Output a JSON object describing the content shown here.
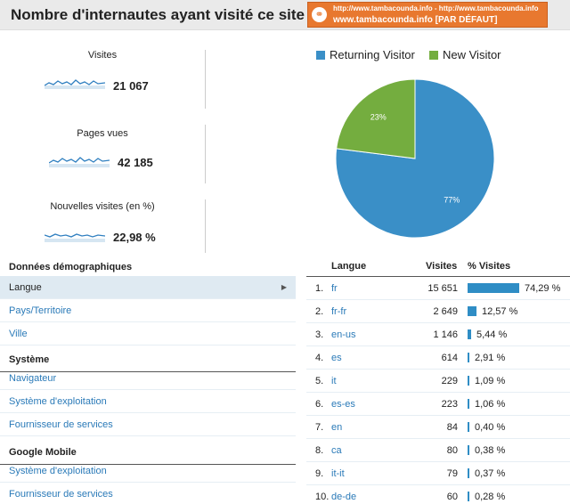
{
  "header": {
    "title": "Nombre d'internautes ayant visité ce site :",
    "profile_line1": "http://www.tambacounda.info - http://www.tambacounda.info",
    "profile_line2": "www.tambacounda.info [PAR DÉFAUT]"
  },
  "metrics": [
    {
      "label": "Visites",
      "value": "21 067"
    },
    {
      "label": "Pages vues",
      "value": "42 185"
    },
    {
      "label": "Nouvelles visites (en %)",
      "value": "22,98 %"
    }
  ],
  "pie": {
    "legend": [
      {
        "name": "Returning Visitor",
        "color": "#3a8fc7"
      },
      {
        "name": "New Visitor",
        "color": "#74ad3f"
      }
    ],
    "slices": [
      {
        "name": "Returning Visitor",
        "value": 77,
        "label": "77%",
        "color": "#3a8fc7"
      },
      {
        "name": "New Visitor",
        "value": 23,
        "label": "23%",
        "color": "#74ad3f"
      }
    ]
  },
  "nav": {
    "sections": [
      {
        "heading": "Données démographiques",
        "items": [
          "Langue",
          "Pays/Territoire",
          "Ville"
        ]
      },
      {
        "heading": "Système",
        "items": [
          "Navigateur",
          "Système d'exploitation",
          "Fournisseur de services"
        ]
      },
      {
        "heading": "Google Mobile",
        "items": [
          "Système d'exploitation",
          "Fournisseur de services"
        ]
      }
    ],
    "selected": "Langue"
  },
  "table": {
    "headers": {
      "lang": "Langue",
      "visits": "Visites",
      "pct": "% Visites"
    },
    "rows": [
      {
        "rank": "1.",
        "lang": "fr",
        "visits": "15 651",
        "pct": "74,29 %",
        "pct_value": 74.29
      },
      {
        "rank": "2.",
        "lang": "fr-fr",
        "visits": "2 649",
        "pct": "12,57 %",
        "pct_value": 12.57
      },
      {
        "rank": "3.",
        "lang": "en-us",
        "visits": "1 146",
        "pct": "5,44 %",
        "pct_value": 5.44
      },
      {
        "rank": "4.",
        "lang": "es",
        "visits": "614",
        "pct": "2,91 %",
        "pct_value": 2.91
      },
      {
        "rank": "5.",
        "lang": "it",
        "visits": "229",
        "pct": "1,09 %",
        "pct_value": 1.09
      },
      {
        "rank": "6.",
        "lang": "es-es",
        "visits": "223",
        "pct": "1,06 %",
        "pct_value": 1.06
      },
      {
        "rank": "7.",
        "lang": "en",
        "visits": "84",
        "pct": "0,40 %",
        "pct_value": 0.4
      },
      {
        "rank": "8.",
        "lang": "ca",
        "visits": "80",
        "pct": "0,38 %",
        "pct_value": 0.38
      },
      {
        "rank": "9.",
        "lang": "it-it",
        "visits": "79",
        "pct": "0,37 %",
        "pct_value": 0.37
      },
      {
        "rank": "10.",
        "lang": "de-de",
        "visits": "60",
        "pct": "0,28 %",
        "pct_value": 0.28
      }
    ]
  }
}
